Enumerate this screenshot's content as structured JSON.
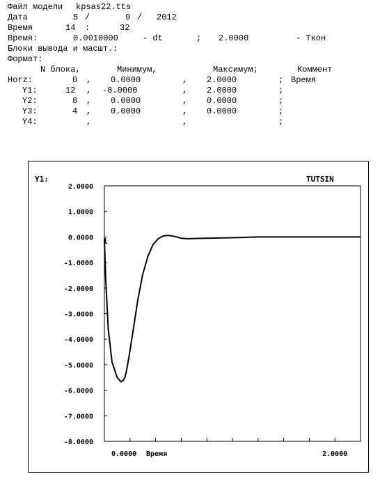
{
  "header": {
    "model_label": "Файл модели",
    "model_file": "kpsas22.tts",
    "date_label": "Дата",
    "date_day": "5",
    "date_month": "9",
    "date_year": "2012",
    "time_label": "Время",
    "time_hour": "14",
    "time_minute": "32",
    "time_step_label": "Время:",
    "dt_value": "0.0010000",
    "dt_label": "- dt",
    "tkon_value": "2.0000",
    "tkon_label": "- Ткон",
    "blocks_title": "Блоки вывода и масшт.:",
    "format_label": "Формат:",
    "columns": {
      "block": "N блока,",
      "min": "Минимум,",
      "max": "Максимум;",
      "comment": "Коммент"
    },
    "rows": [
      {
        "name": "Horz:",
        "block": "0",
        "min": "0.0000",
        "max": "2.0000",
        "comment": "Время"
      },
      {
        "name": "Y1:",
        "block": "12",
        "min": "-8.0000",
        "max": "2.0000",
        "comment": ""
      },
      {
        "name": "Y2:",
        "block": "8",
        "min": "0.0000",
        "max": "0.0000",
        "comment": ""
      },
      {
        "name": "Y3:",
        "block": "4",
        "min": "0.0000",
        "max": "0.0000",
        "comment": ""
      },
      {
        "name": "Y4:",
        "block": "",
        "min": "",
        "max": "",
        "comment": ""
      }
    ]
  },
  "chart_data": {
    "type": "line",
    "title": "",
    "ylabel": "Y1:",
    "top_right_label": "TUTSIN",
    "xlabel": "Время",
    "xlim": [
      0,
      2
    ],
    "ylim": [
      -8,
      2
    ],
    "grid": false,
    "y_ticks": [
      "2.0000",
      "1.0000",
      "0.0000",
      "-1.0000",
      "-2.0000",
      "-3.0000",
      "-4.0000",
      "-5.0000",
      "-6.0000",
      "-7.0000",
      "-8.0000"
    ],
    "x_tick_labels": [
      "0.0000",
      "2.0000"
    ],
    "series_marker": "1",
    "series": [
      {
        "x": [
          0,
          0.01,
          0.03,
          0.06,
          0.1,
          0.13,
          0.15,
          0.16,
          0.17,
          0.19,
          0.22,
          0.26,
          0.3,
          0.34,
          0.38,
          0.42,
          0.46,
          0.5,
          0.55,
          0.6,
          0.65,
          0.7,
          0.8,
          0.9,
          1.0,
          1.2,
          1.4,
          1.6,
          1.8,
          2.0
        ],
        "y": [
          -0.1,
          -1.6,
          -3.6,
          -4.9,
          -5.5,
          -5.67,
          -5.6,
          -5.5,
          -5.3,
          -4.75,
          -3.8,
          -2.5,
          -1.45,
          -0.75,
          -0.3,
          -0.07,
          0.04,
          0.06,
          0.02,
          -0.05,
          -0.07,
          -0.06,
          -0.05,
          -0.04,
          -0.03,
          0.0,
          0.0,
          0.0,
          0.0,
          0.0
        ]
      }
    ]
  }
}
